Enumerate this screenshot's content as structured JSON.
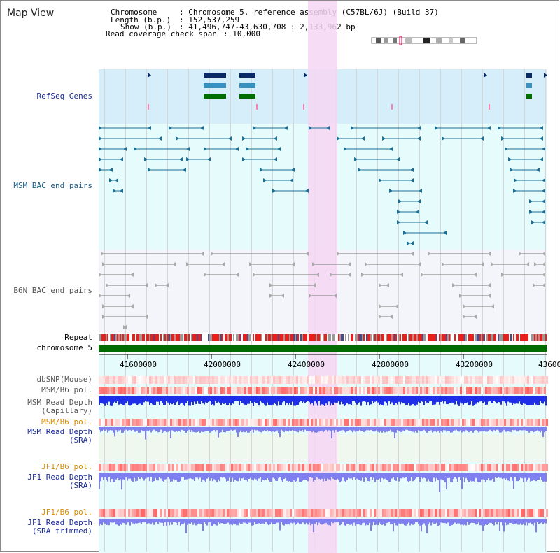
{
  "window": {
    "title": "Map View"
  },
  "info": {
    "chromosome_key": "Chromosome",
    "chromosome_val": ": Chromosome 5, reference assembly (C57BL/6J) (Build 37)",
    "length_key": "Length (b.p.)",
    "length_val": ": 152,537,259",
    "show_key": "Show (b.p.)",
    "show_val": ": 41,496,747-43,630,708 : 2,133,962 bp",
    "coverage_key": "Read coverage check span",
    "coverage_val": ": 10,000"
  },
  "tracks": {
    "refseq": "RefSeq Genes",
    "msm_bac": "MSM BAC end pairs",
    "b6n_bac": "B6N BAC end pairs",
    "repeat": "Repeat",
    "chromosome": "chromosome 5",
    "dbsnp": "dbSNP(Mouse)",
    "msm_b6_pol_1": "MSM/B6 pol.",
    "msm_read_depth_cap_1": "MSM Read Depth",
    "msm_read_depth_cap_2": "(Capillary)",
    "msm_b6_pol_2": "MSM/B6 pol.",
    "msm_read_depth_sra_1": "MSM Read Depth",
    "msm_read_depth_sra_2": "(SRA)",
    "jf1_b6_pol_1": "JF1/B6 pol.",
    "jf1_read_depth_sra_1": "JF1 Read Depth",
    "jf1_read_depth_sra_2": "(SRA)",
    "jf1_b6_pol_2": "JF1/B6 pol.",
    "jf1_read_depth_trim_1": "JF1 Read Depth",
    "jf1_read_depth_trim_2": "(SRA trimmed)"
  },
  "axis": {
    "ticks": [
      "41600000",
      "42000000",
      "42400000",
      "42800000",
      "43200000",
      "43600"
    ]
  },
  "colors": {
    "refseq_bg": "#d6eef9",
    "light_cyan": "#e6fbfb",
    "highlight": "#f6d6f3",
    "chrom_green": "#006b00",
    "depth_blue": "#1f2ee8",
    "depth_lavender": "#7f7ff0"
  }
}
